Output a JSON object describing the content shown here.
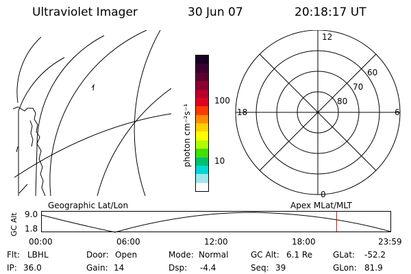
{
  "header": {
    "title": "Ultraviolet Imager",
    "date": "30 Jun 07",
    "time": "20:18:17 UT"
  },
  "map_panel": {
    "label": "Geographic Lat/Lon"
  },
  "colorbar": {
    "unit_label": "photon cm⁻²s⁻¹",
    "tick_labels": [
      "100",
      "10"
    ],
    "colors": [
      "#1a0020",
      "#3a0030",
      "#5a0030",
      "#8a0030",
      "#b5002a",
      "#e00020",
      "#ff3a00",
      "#ff8c00",
      "#ffd000",
      "#ffff00",
      "#b0ff00",
      "#40e000",
      "#00c070",
      "#00d8d8",
      "#9ae8ee",
      "#ffffff"
    ]
  },
  "polar_panel": {
    "label": "Apex MLat/MLT",
    "mlt_labels": {
      "top": "12",
      "bottom": "0",
      "left": "18",
      "right": "6"
    },
    "lat_labels": [
      "60",
      "70",
      "80"
    ]
  },
  "altitude_plot": {
    "ylabel": "GC Alt",
    "yticks": [
      "9.0",
      "1.8"
    ],
    "xticks": [
      "00:00",
      "06:00",
      "12:00",
      "18:00",
      "23:59"
    ],
    "current_time_marker_hours": 20.3,
    "marker_color": "#e00000"
  },
  "status": {
    "flt_label": "Flt:",
    "flt_value": "LBHL",
    "ip_label": "IP:",
    "ip_value": "36.0",
    "door_label": "Door:",
    "door_value": "Open",
    "gain_label": "Gain:",
    "gain_value": "14",
    "mode_label": "Mode:",
    "mode_value": "Normal",
    "dsp_label": "Dsp:",
    "dsp_value": "-4.4",
    "gcalt_label": "GC Alt:",
    "gcalt_value": "6.1 Re",
    "seq_label": "Seq:",
    "seq_value": "39",
    "glat_label": "GLat:",
    "glat_value": "-52.2",
    "glon_label": "GLon:",
    "glon_value": "81.9"
  }
}
